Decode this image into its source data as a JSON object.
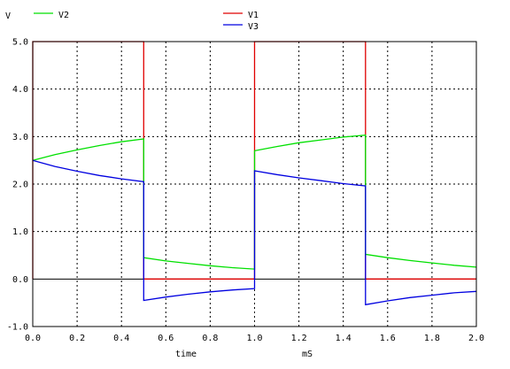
{
  "chart_data": {
    "type": "line",
    "ylabel": "V",
    "xlabel": "time",
    "xunit": "mS",
    "xlim": [
      0.0,
      2.0
    ],
    "ylim": [
      -1.0,
      5.0
    ],
    "xticks": [
      0.0,
      0.2,
      0.4,
      0.6,
      0.8,
      1.0,
      1.2,
      1.4,
      1.6,
      1.8,
      2.0
    ],
    "xtick_labels": [
      "0.0",
      "0.2",
      "0.4",
      "0.6",
      "0.8",
      "1.0",
      "1.2",
      "1.4",
      "1.6",
      "1.8",
      "2.0"
    ],
    "yticks": [
      -1.0,
      0.0,
      1.0,
      2.0,
      3.0,
      4.0,
      5.0
    ],
    "ytick_labels": [
      "-1.0",
      "0.0",
      "1.0",
      "2.0",
      "3.0",
      "4.0",
      "5.0"
    ],
    "grid": true,
    "series": [
      {
        "name": "V1",
        "color": "#e00000",
        "x": [
          0.0,
          0.0,
          0.5,
          0.5,
          1.0,
          1.0,
          1.5,
          1.5,
          2.0
        ],
        "y": [
          0.0,
          5.0,
          5.0,
          0.0,
          0.0,
          5.0,
          5.0,
          0.0,
          0.0
        ]
      },
      {
        "name": "V2",
        "color": "#00e000",
        "x": [
          0.0,
          0.1,
          0.2,
          0.3,
          0.4,
          0.5,
          0.5,
          0.6,
          0.7,
          0.8,
          0.9,
          1.0,
          1.0,
          1.1,
          1.2,
          1.3,
          1.4,
          1.5,
          1.5,
          1.6,
          1.7,
          1.8,
          1.9,
          2.0
        ],
        "y": [
          2.5,
          2.62,
          2.72,
          2.81,
          2.89,
          2.95,
          0.45,
          0.38,
          0.33,
          0.28,
          0.24,
          0.21,
          2.7,
          2.79,
          2.87,
          2.93,
          2.99,
          3.03,
          0.52,
          0.45,
          0.39,
          0.34,
          0.29,
          0.25
        ]
      },
      {
        "name": "V3",
        "color": "#0000e0",
        "x": [
          0.0,
          0.1,
          0.2,
          0.3,
          0.4,
          0.5,
          0.5,
          0.6,
          0.7,
          0.8,
          0.9,
          1.0,
          1.0,
          1.1,
          1.2,
          1.3,
          1.4,
          1.5,
          1.5,
          1.6,
          1.7,
          1.8,
          1.9,
          2.0
        ],
        "y": [
          2.5,
          2.37,
          2.27,
          2.18,
          2.11,
          2.05,
          -0.45,
          -0.38,
          -0.32,
          -0.27,
          -0.23,
          -0.2,
          2.28,
          2.2,
          2.13,
          2.07,
          2.01,
          1.96,
          -0.54,
          -0.46,
          -0.39,
          -0.34,
          -0.29,
          -0.26
        ]
      }
    ]
  }
}
